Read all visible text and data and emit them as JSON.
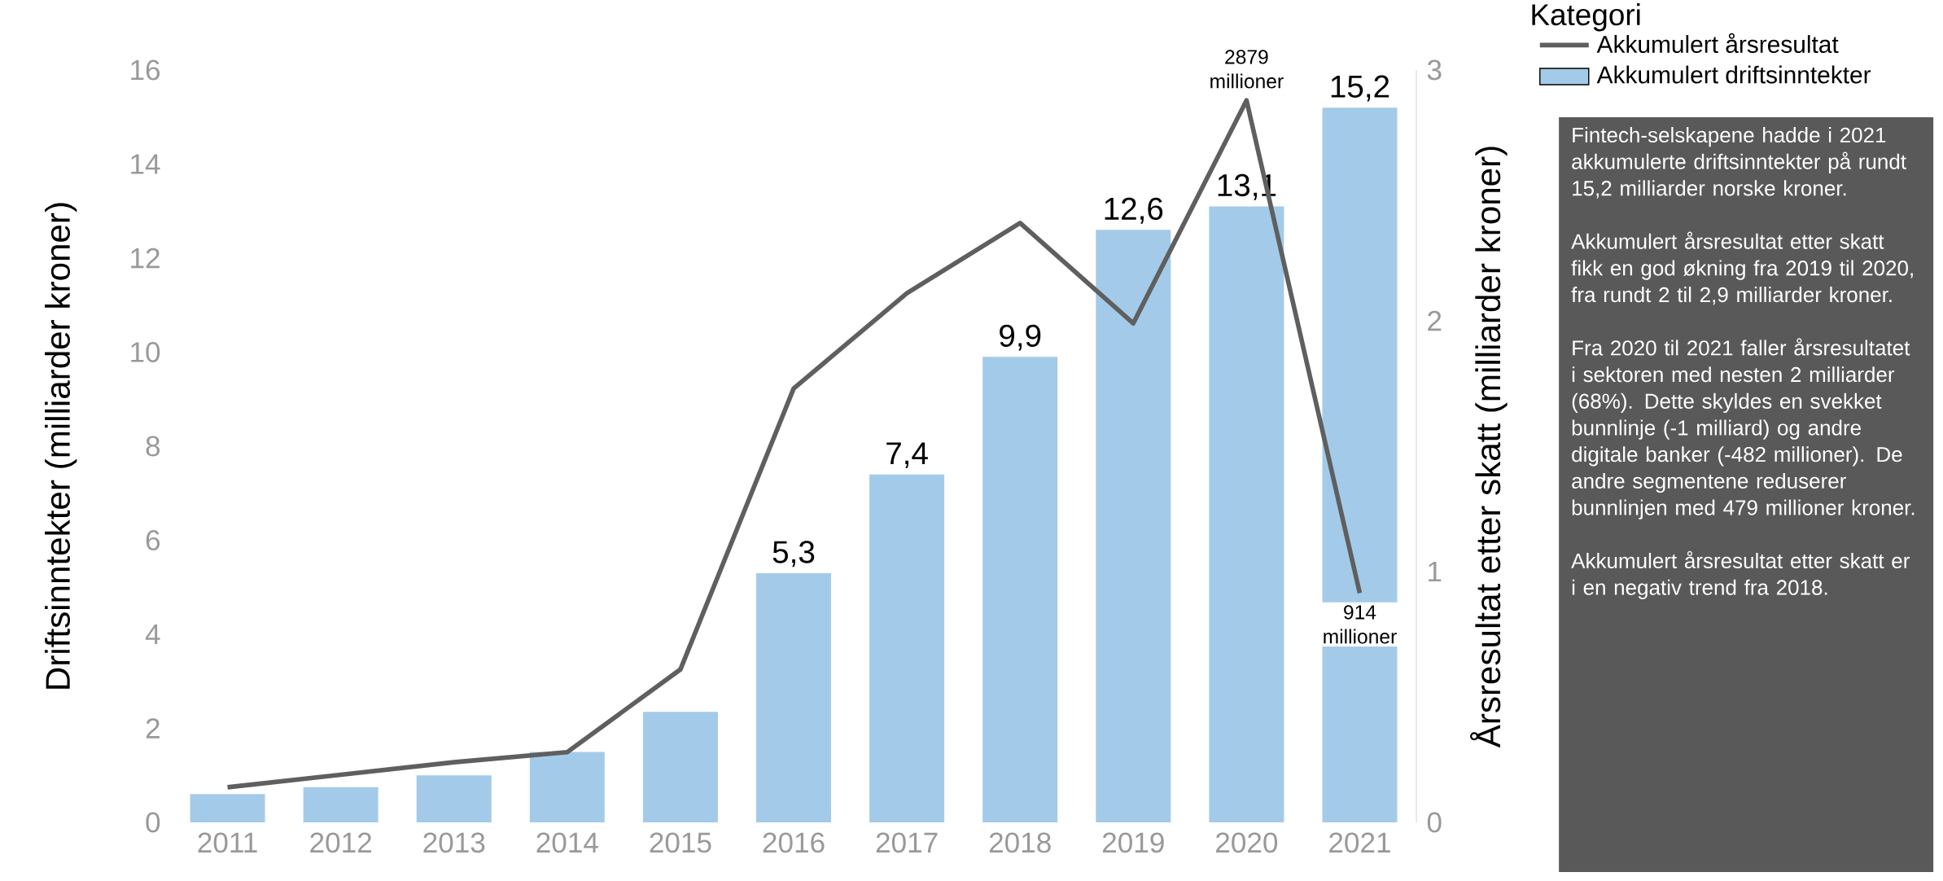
{
  "chart_data": {
    "type": "bar",
    "categories": [
      "2011",
      "2012",
      "2013",
      "2014",
      "2015",
      "2016",
      "2017",
      "2018",
      "2019",
      "2020",
      "2021"
    ],
    "ylabel": "Driftsinntekter (milliarder kroner)",
    "y2label": "Årsresultat etter skatt (milliarder kroner)",
    "legend_title": "Kategori",
    "legend": "top right",
    "ylim": [
      0,
      16
    ],
    "yticks": [
      0,
      2,
      4,
      6,
      8,
      10,
      12,
      14,
      16
    ],
    "y2lim": [
      0,
      3
    ],
    "y2ticks": [
      0,
      1,
      2,
      3
    ],
    "series": [
      {
        "name": "Akkumulert årsresultat",
        "type": "line",
        "axis": "y2",
        "color": "#5f5f5f",
        "values": [
          0.14,
          0.19,
          0.24,
          0.28,
          0.61,
          1.73,
          2.11,
          2.39,
          1.99,
          2.879,
          0.914
        ]
      },
      {
        "name": "Akkumulert driftsinntekter",
        "color": "#a3cbe9",
        "values": [
          0.6,
          0.75,
          1.0,
          1.5,
          2.35,
          5.3,
          7.4,
          9.9,
          12.6,
          13.1,
          15.2
        ],
        "value_labels": [
          null,
          null,
          null,
          null,
          null,
          "5,3",
          "7,4",
          "9,9",
          "12,6",
          "13,1",
          "15,2"
        ]
      }
    ],
    "annotations": [
      "2879 millioner",
      "914 millioner",
      "Fintech-selskapene hadde i 2021 akkumulerte driftsinntekter på rundt 15,2 milliarder norske kroner.",
      "Akkumulert årsresultat etter skatt fikk en god økning fra 2019 til 2020, fra rundt 2 til 2,9 milliarder kroner.",
      "Fra 2020 til 2021 faller årsresultatet i sektoren med nesten 2 milliarder (68%). Dette skyldes en svekket bunnlinje (-1 milliard) og andre digitale banker (-482 millioner). De andre segmentene reduserer bunnlinjen med 479 millioner kroner.",
      "Akkumulert årsresultat etter skatt er i en negativ trend fra 2018."
    ]
  }
}
